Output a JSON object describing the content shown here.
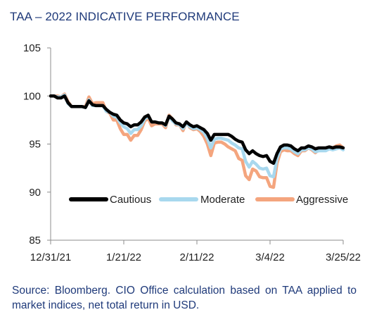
{
  "title": "TAA – 2022 INDICATIVE PERFORMANCE",
  "source_note": "Source: Bloomberg. CIO Office calculation based on TAA applied to market indices, net total return in USD.",
  "chart_data": {
    "type": "line",
    "title": "TAA – 2022 INDICATIVE PERFORMANCE",
    "xlabel": "",
    "ylabel": "",
    "ylim": [
      85,
      105
    ],
    "yticks": [
      "85",
      "90",
      "95",
      "100",
      "105"
    ],
    "x_tick_labels": [
      "12/31/21",
      "1/21/22",
      "2/11/22",
      "3/4/22",
      "3/25/22"
    ],
    "x_range_days": [
      0,
      84
    ],
    "grid": false,
    "legend_position": "lower-right inside plot",
    "series": [
      {
        "name": "Cautious",
        "color": "#000000",
        "x": [
          0,
          1,
          2,
          3,
          4,
          5,
          6,
          7,
          8,
          9,
          10,
          11,
          12,
          13,
          14,
          15,
          16,
          17,
          18,
          19,
          20,
          21,
          22,
          23,
          24,
          25,
          26,
          27,
          28,
          29,
          30,
          31,
          32,
          33,
          34,
          35,
          36,
          37,
          38,
          39,
          40,
          41,
          42,
          43,
          44,
          45,
          46,
          47,
          48,
          49,
          50,
          51,
          52,
          53,
          54,
          55,
          56,
          57,
          58,
          59,
          60,
          61,
          62,
          63,
          64,
          65,
          66,
          67,
          68,
          69,
          70,
          71,
          72,
          73,
          74,
          75,
          76,
          77,
          78,
          79,
          80,
          81,
          82,
          83,
          84
        ],
        "values": [
          100.0,
          100.0,
          99.8,
          99.8,
          100.0,
          99.3,
          98.9,
          98.9,
          98.9,
          98.9,
          98.8,
          99.5,
          99.1,
          99.0,
          99.0,
          99.0,
          98.6,
          98.3,
          98.1,
          98.0,
          97.5,
          97.2,
          97.1,
          96.8,
          97.0,
          97.0,
          97.3,
          97.8,
          98.0,
          97.3,
          97.3,
          97.2,
          97.2,
          97.0,
          97.9,
          97.6,
          97.2,
          97.1,
          96.8,
          97.3,
          97.0,
          96.8,
          96.9,
          96.7,
          96.5,
          96.1,
          95.4,
          96.0,
          96.0,
          96.0,
          96.0,
          96.0,
          95.8,
          95.5,
          95.3,
          95.2,
          94.4,
          94.0,
          94.3,
          94.0,
          93.8,
          93.7,
          93.8,
          93.2,
          93.0,
          94.0,
          94.7,
          94.9,
          94.9,
          94.8,
          94.5,
          94.3,
          94.6,
          94.6,
          94.8,
          94.7,
          94.5,
          94.6,
          94.6,
          94.6,
          94.7,
          94.6,
          94.7,
          94.7,
          94.6
        ]
      },
      {
        "name": "Moderate",
        "color": "#a8d8ee",
        "x": [
          0,
          1,
          2,
          3,
          4,
          5,
          6,
          7,
          8,
          9,
          10,
          11,
          12,
          13,
          14,
          15,
          16,
          17,
          18,
          19,
          20,
          21,
          22,
          23,
          24,
          25,
          26,
          27,
          28,
          29,
          30,
          31,
          32,
          33,
          34,
          35,
          36,
          37,
          38,
          39,
          40,
          41,
          42,
          43,
          44,
          45,
          46,
          47,
          48,
          49,
          50,
          51,
          52,
          53,
          54,
          55,
          56,
          57,
          58,
          59,
          60,
          61,
          62,
          63,
          64,
          65,
          66,
          67,
          68,
          69,
          70,
          71,
          72,
          73,
          74,
          75,
          76,
          77,
          78,
          79,
          80,
          81,
          82,
          83,
          84
        ],
        "values": [
          100.0,
          100.0,
          99.9,
          99.9,
          100.1,
          99.2,
          98.9,
          98.9,
          98.9,
          98.9,
          98.8,
          99.6,
          99.0,
          99.0,
          99.0,
          99.0,
          98.4,
          98.3,
          97.9,
          97.8,
          97.2,
          96.8,
          96.6,
          96.1,
          96.5,
          96.5,
          96.9,
          97.6,
          97.9,
          97.3,
          97.3,
          97.2,
          97.2,
          96.9,
          97.9,
          97.4,
          97.1,
          97.0,
          96.6,
          97.2,
          96.8,
          96.6,
          96.7,
          96.5,
          96.2,
          95.6,
          94.6,
          95.5,
          95.6,
          95.6,
          95.5,
          95.4,
          95.1,
          94.9,
          94.6,
          94.5,
          93.2,
          92.6,
          93.2,
          92.9,
          92.5,
          92.4,
          92.5,
          91.7,
          91.6,
          93.5,
          94.5,
          94.6,
          94.6,
          94.5,
          94.2,
          94.0,
          94.4,
          94.4,
          94.6,
          94.5,
          94.2,
          94.3,
          94.3,
          94.3,
          94.5,
          94.4,
          94.5,
          94.6,
          94.4
        ]
      },
      {
        "name": "Aggressive",
        "color": "#f4a57e",
        "x": [
          0,
          1,
          2,
          3,
          4,
          5,
          6,
          7,
          8,
          9,
          10,
          11,
          12,
          13,
          14,
          15,
          16,
          17,
          18,
          19,
          20,
          21,
          22,
          23,
          24,
          25,
          26,
          27,
          28,
          29,
          30,
          31,
          32,
          33,
          34,
          35,
          36,
          37,
          38,
          39,
          40,
          41,
          42,
          43,
          44,
          45,
          46,
          47,
          48,
          49,
          50,
          51,
          52,
          53,
          54,
          55,
          56,
          57,
          58,
          59,
          60,
          61,
          62,
          63,
          64,
          65,
          66,
          67,
          68,
          69,
          70,
          71,
          72,
          73,
          74,
          75,
          76,
          77,
          78,
          79,
          80,
          81,
          82,
          83,
          84
        ],
        "values": [
          100.0,
          100.0,
          100.0,
          99.9,
          100.2,
          99.4,
          98.9,
          98.9,
          98.9,
          98.9,
          98.9,
          99.9,
          99.2,
          99.3,
          99.3,
          99.3,
          98.4,
          98.2,
          97.5,
          97.5,
          96.6,
          96.0,
          96.0,
          95.4,
          95.9,
          95.9,
          96.5,
          97.4,
          97.7,
          96.9,
          97.1,
          97.1,
          97.1,
          96.7,
          98.0,
          97.6,
          97.0,
          97.0,
          96.4,
          97.3,
          96.7,
          96.5,
          96.6,
          96.3,
          95.8,
          95.0,
          93.8,
          95.1,
          95.2,
          95.2,
          95.0,
          94.7,
          94.5,
          94.3,
          93.5,
          93.3,
          91.7,
          91.3,
          92.4,
          92.2,
          91.6,
          91.5,
          91.5,
          90.6,
          90.5,
          93.0,
          94.2,
          94.4,
          94.3,
          94.3,
          94.0,
          93.8,
          94.3,
          94.3,
          94.6,
          94.4,
          94.1,
          94.4,
          94.4,
          94.5,
          94.7,
          94.6,
          94.8,
          94.9,
          94.6
        ]
      }
    ]
  }
}
